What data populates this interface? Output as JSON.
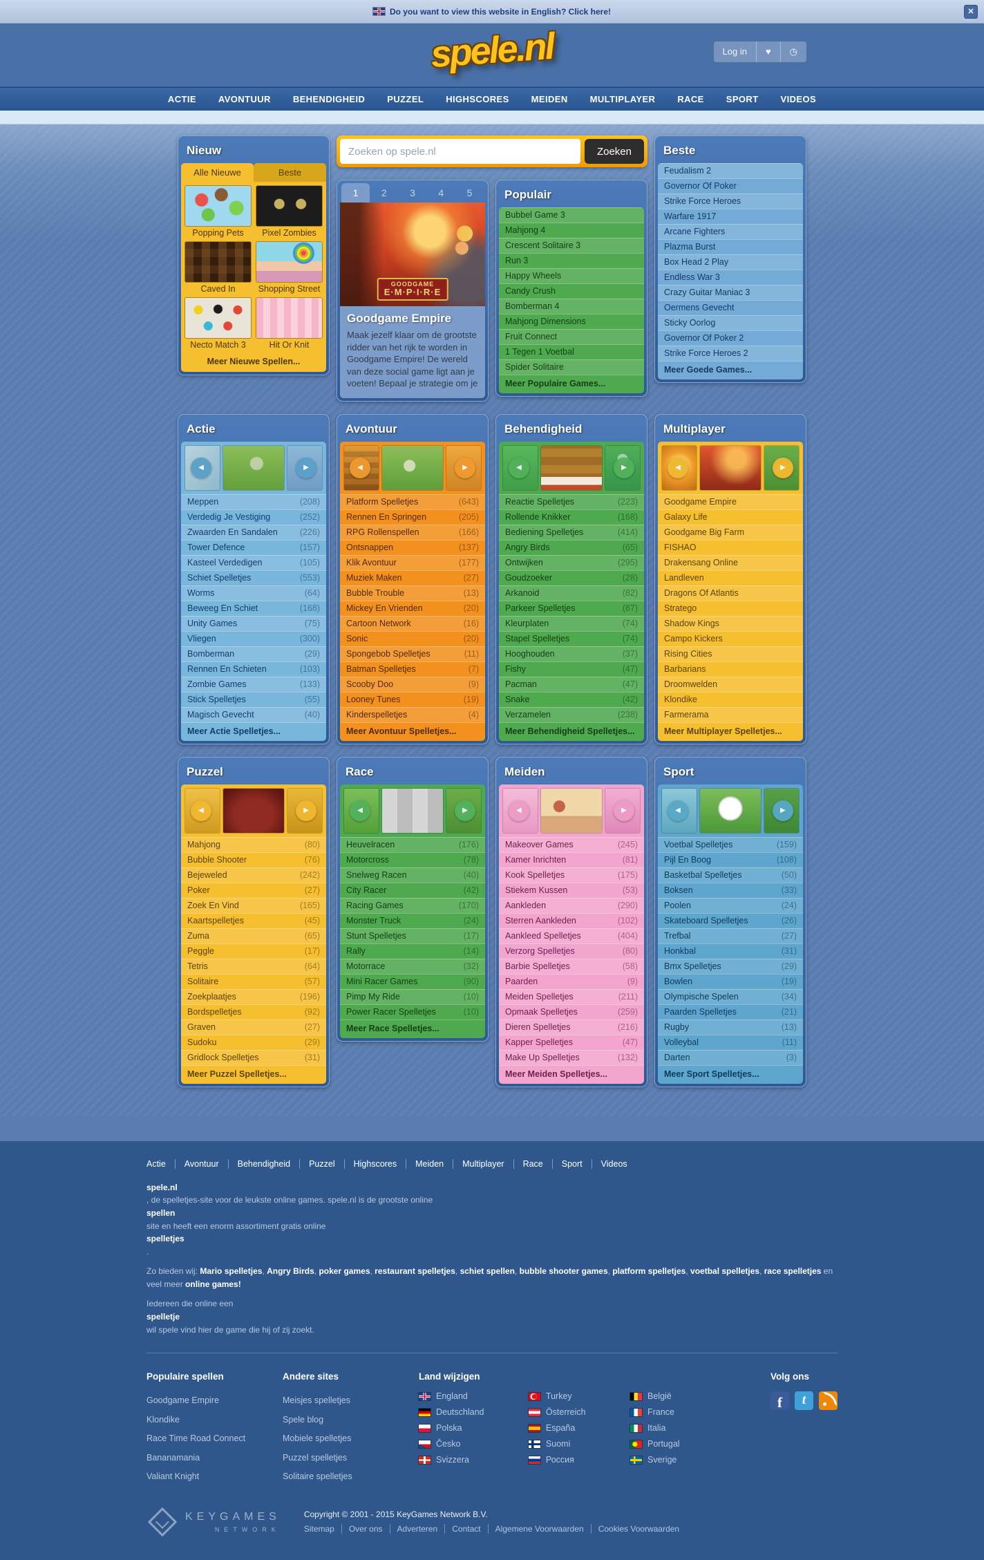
{
  "banner": {
    "text": "Do you want to view this website in English? Click here!",
    "flag": "uk"
  },
  "header": {
    "logo": "spele.nl",
    "login_label": "Log in"
  },
  "icons": {
    "close": "✕",
    "heart": "♥",
    "clock": "◷",
    "prev": "◀",
    "next": "▶",
    "facebook": "f",
    "twitter": "t",
    "rss": "rss"
  },
  "colors": {
    "brand_yellow": "#ffc31e",
    "panel_frame_blue": "#35639f",
    "green": "#4fa94f",
    "orange": "#f2911d",
    "yellow": "#f6bf2f",
    "pink": "#f2a6cd",
    "sport_blue": "#5ea6cd",
    "footer_blue": "#2f578c"
  },
  "nav": {
    "items": [
      "ACTIE",
      "AVONTUUR",
      "BEHENDIGHEID",
      "PUZZEL",
      "HIGHSCORES",
      "MEIDEN",
      "MULTIPLAYER",
      "RACE",
      "SPORT",
      "VIDEOS"
    ]
  },
  "search": {
    "placeholder": "Zoeken op spele.nl",
    "button": "Zoeken"
  },
  "nieuw": {
    "title": "Nieuw",
    "tabs": [
      {
        "label": "Alle Nieuwe",
        "active": true
      },
      {
        "label": "Beste",
        "active": false
      }
    ],
    "games": [
      {
        "name": "Popping Pets",
        "thumb": "popping-pets"
      },
      {
        "name": "Pixel Zombies",
        "thumb": "pixel-zombies"
      },
      {
        "name": "Caved In",
        "thumb": "caved-in"
      },
      {
        "name": "Shopping Street",
        "thumb": "shopping-street"
      },
      {
        "name": "Necto Match 3",
        "thumb": "necto-match-3"
      },
      {
        "name": "Hit Or Knit",
        "thumb": "hit-or-knit"
      }
    ],
    "more": "Meer Nieuwe Spellen..."
  },
  "featured": {
    "tabs": [
      {
        "label": "1",
        "active": true
      },
      {
        "label": "2",
        "active": false
      },
      {
        "label": "3",
        "active": false
      },
      {
        "label": "4",
        "active": false
      },
      {
        "label": "5",
        "active": false
      }
    ],
    "badge_line1": "GOODGAME",
    "badge_line2": "E·M·P·I·R·E",
    "title": "Goodgame Empire",
    "description": "Maak jezelf klaar om de grootste ridder van het rijk te worden in Goodgame Empire! De wereld van deze social game ligt aan je voeten! Bepaal je strategie om je"
  },
  "populair": {
    "title": "Populair",
    "items": [
      "Bubbel Game 3",
      "Mahjong 4",
      "Crescent Solitaire 3",
      "Run 3",
      "Happy Wheels",
      "Candy Crush",
      "Bomberman 4",
      "Mahjong Dimensions",
      "Fruit Connect",
      "1 Tegen 1 Voetbal",
      "Spider Solitaire"
    ],
    "more": "Meer Populaire Games..."
  },
  "beste": {
    "title": "Beste",
    "items": [
      "Feudalism 2",
      "Governor Of Poker",
      "Strike Force Heroes",
      "Warfare 1917",
      "Arcane Fighters",
      "Plazma Burst",
      "Box Head 2 Play",
      "Endless War 3",
      "Crazy Guitar Maniac 3",
      "Oermens Gevecht",
      "Sticky Oorlog",
      "Governor Of Poker 2",
      "Strike Force Heroes 2"
    ],
    "more": "Meer Goede Games..."
  },
  "categories": {
    "actie": {
      "title": "Actie",
      "more": "Meer Actie Spelletjes...",
      "items": [
        {
          "label": "Meppen",
          "count": "(208)"
        },
        {
          "label": "Verdedig Je Vestiging",
          "count": "(252)"
        },
        {
          "label": "Zwaarden En Sandalen",
          "count": "(226)"
        },
        {
          "label": "Tower Defence",
          "count": "(157)"
        },
        {
          "label": "Kasteel Verdedigen",
          "count": "(105)"
        },
        {
          "label": "Schiet Spelletjes",
          "count": "(553)"
        },
        {
          "label": "Worms",
          "count": "(64)"
        },
        {
          "label": "Beweeg En Schiet",
          "count": "(168)"
        },
        {
          "label": "Unity Games",
          "count": "(75)"
        },
        {
          "label": "Vliegen",
          "count": "(300)"
        },
        {
          "label": "Bomberman",
          "count": "(29)"
        },
        {
          "label": "Rennen En Schieten",
          "count": "(103)"
        },
        {
          "label": "Zombie Games",
          "count": "(133)"
        },
        {
          "label": "Stick Spelletjes",
          "count": "(55)"
        },
        {
          "label": "Magisch Gevecht",
          "count": "(40)"
        }
      ]
    },
    "avontuur": {
      "title": "Avontuur",
      "more": "Meer Avontuur Spelletjes...",
      "items": [
        {
          "label": "Platform Spelletjes",
          "count": "(643)"
        },
        {
          "label": "Rennen En Springen",
          "count": "(205)"
        },
        {
          "label": "RPG Rollenspellen",
          "count": "(166)"
        },
        {
          "label": "Ontsnappen",
          "count": "(137)"
        },
        {
          "label": "Klik Avontuur",
          "count": "(177)"
        },
        {
          "label": "Muziek Maken",
          "count": "(27)"
        },
        {
          "label": "Bubble Trouble",
          "count": "(13)"
        },
        {
          "label": "Mickey En Vrienden",
          "count": "(20)"
        },
        {
          "label": "Cartoon Network",
          "count": "(16)"
        },
        {
          "label": "Sonic",
          "count": "(20)"
        },
        {
          "label": "Spongebob Spelletjes",
          "count": "(11)"
        },
        {
          "label": "Batman Spelletjes",
          "count": "(7)"
        },
        {
          "label": "Scooby Doo",
          "count": "(9)"
        },
        {
          "label": "Looney Tunes",
          "count": "(19)"
        },
        {
          "label": "Kinderspelletjes",
          "count": "(4)"
        }
      ]
    },
    "behendigheid": {
      "title": "Behendigheid",
      "more": "Meer Behendigheid Spelletjes...",
      "items": [
        {
          "label": "Reactie Spelletjes",
          "count": "(223)"
        },
        {
          "label": "Rollende Knikker",
          "count": "(168)"
        },
        {
          "label": "Bediening Spelletjes",
          "count": "(414)"
        },
        {
          "label": "Angry Birds",
          "count": "(65)"
        },
        {
          "label": "Ontwijken",
          "count": "(295)"
        },
        {
          "label": "Goudzoeker",
          "count": "(28)"
        },
        {
          "label": "Arkanoid",
          "count": "(82)"
        },
        {
          "label": "Parkeer Spelletjes",
          "count": "(87)"
        },
        {
          "label": "Kleurplaten",
          "count": "(74)"
        },
        {
          "label": "Stapel Spelletjes",
          "count": "(74)"
        },
        {
          "label": "Hooghouden",
          "count": "(37)"
        },
        {
          "label": "Fishy",
          "count": "(47)"
        },
        {
          "label": "Pacman",
          "count": "(47)"
        },
        {
          "label": "Snake",
          "count": "(42)"
        },
        {
          "label": "Verzamelen",
          "count": "(238)"
        }
      ]
    },
    "multiplayer": {
      "title": "Multiplayer",
      "more": "Meer Multiplayer Spelletjes...",
      "items": [
        {
          "label": "Goodgame Empire",
          "count": ""
        },
        {
          "label": "Galaxy Life",
          "count": ""
        },
        {
          "label": "Goodgame Big Farm",
          "count": ""
        },
        {
          "label": "FISHAO",
          "count": ""
        },
        {
          "label": "Drakensang Online",
          "count": ""
        },
        {
          "label": "Landleven",
          "count": ""
        },
        {
          "label": "Dragons Of Atlantis",
          "count": ""
        },
        {
          "label": "Stratego",
          "count": ""
        },
        {
          "label": "Shadow Kings",
          "count": ""
        },
        {
          "label": "Campo Kickers",
          "count": ""
        },
        {
          "label": "Rising Cities",
          "count": ""
        },
        {
          "label": "Barbarians",
          "count": ""
        },
        {
          "label": "Droomwelden",
          "count": ""
        },
        {
          "label": "Klondike",
          "count": ""
        },
        {
          "label": "Farmerama",
          "count": ""
        }
      ]
    },
    "puzzel": {
      "title": "Puzzel",
      "more": "Meer Puzzel Spelletjes...",
      "items": [
        {
          "label": "Mahjong",
          "count": "(80)"
        },
        {
          "label": "Bubble Shooter",
          "count": "(76)"
        },
        {
          "label": "Bejeweled",
          "count": "(242)"
        },
        {
          "label": "Poker",
          "count": "(27)"
        },
        {
          "label": "Zoek En Vind",
          "count": "(165)"
        },
        {
          "label": "Kaartspelletjes",
          "count": "(45)"
        },
        {
          "label": "Zuma",
          "count": "(65)"
        },
        {
          "label": "Peggle",
          "count": "(17)"
        },
        {
          "label": "Tetris",
          "count": "(64)"
        },
        {
          "label": "Solitaire",
          "count": "(57)"
        },
        {
          "label": "Zoekplaatjes",
          "count": "(196)"
        },
        {
          "label": "Bordspelletjes",
          "count": "(92)"
        },
        {
          "label": "Graven",
          "count": "(27)"
        },
        {
          "label": "Sudoku",
          "count": "(29)"
        },
        {
          "label": "Gridlock Spelletjes",
          "count": "(31)"
        }
      ]
    },
    "race": {
      "title": "Race",
      "more": "Meer Race Spelletjes...",
      "items": [
        {
          "label": "Heuvelracen",
          "count": "(176)"
        },
        {
          "label": "Motorcross",
          "count": "(78)"
        },
        {
          "label": "Snelweg Racen",
          "count": "(40)"
        },
        {
          "label": "City Racer",
          "count": "(42)"
        },
        {
          "label": "Racing Games",
          "count": "(170)"
        },
        {
          "label": "Monster Truck",
          "count": "(24)"
        },
        {
          "label": "Stunt Spelletjes",
          "count": "(17)"
        },
        {
          "label": "Rally",
          "count": "(14)"
        },
        {
          "label": "Motorrace",
          "count": "(32)"
        },
        {
          "label": "Mini Racer Games",
          "count": "(90)"
        },
        {
          "label": "Pimp My Ride",
          "count": "(10)"
        },
        {
          "label": "Power Racer Spelletjes",
          "count": "(10)"
        }
      ]
    },
    "meiden": {
      "title": "Meiden",
      "more": "Meer Meiden Spelletjes...",
      "items": [
        {
          "label": "Makeover Games",
          "count": "(245)"
        },
        {
          "label": "Kamer Inrichten",
          "count": "(81)"
        },
        {
          "label": "Kook Spelletjes",
          "count": "(175)"
        },
        {
          "label": "Stiekem Kussen",
          "count": "(53)"
        },
        {
          "label": "Aankleden",
          "count": "(290)"
        },
        {
          "label": "Sterren Aankleden",
          "count": "(102)"
        },
        {
          "label": "Aankleed Spelletjes",
          "count": "(404)"
        },
        {
          "label": "Verzorg Spelletjes",
          "count": "(80)"
        },
        {
          "label": "Barbie Spelletjes",
          "count": "(58)"
        },
        {
          "label": "Paarden",
          "count": "(9)"
        },
        {
          "label": "Meiden Spelletjes",
          "count": "(211)"
        },
        {
          "label": "Opmaak Spelletjes",
          "count": "(259)"
        },
        {
          "label": "Dieren Spelletjes",
          "count": "(216)"
        },
        {
          "label": "Kapper Spelletjes",
          "count": "(47)"
        },
        {
          "label": "Make Up Spelletjes",
          "count": "(132)"
        }
      ]
    },
    "sport": {
      "title": "Sport",
      "more": "Meer Sport Spelletjes...",
      "items": [
        {
          "label": "Voetbal Spelletjes",
          "count": "(159)"
        },
        {
          "label": "Pijl En Boog",
          "count": "(108)"
        },
        {
          "label": "Basketbal Spelletjes",
          "count": "(50)"
        },
        {
          "label": "Boksen",
          "count": "(33)"
        },
        {
          "label": "Poolen",
          "count": "(24)"
        },
        {
          "label": "Skateboard Spelletjes",
          "count": "(26)"
        },
        {
          "label": "Trefbal",
          "count": "(27)"
        },
        {
          "label": "Honkbal",
          "count": "(31)"
        },
        {
          "label": "Bmx Spelletjes",
          "count": "(29)"
        },
        {
          "label": "Bowlen",
          "count": "(19)"
        },
        {
          "label": "Olympische Spelen",
          "count": "(34)"
        },
        {
          "label": "Paarden Spelletjes",
          "count": "(21)"
        },
        {
          "label": "Rugby",
          "count": "(13)"
        },
        {
          "label": "Volleybal",
          "count": "(11)"
        },
        {
          "label": "Darten",
          "count": "(3)"
        }
      ]
    }
  },
  "footer": {
    "nav": [
      "Actie",
      "Avontuur",
      "Behendigheid",
      "Puzzel",
      "Highscores",
      "Meiden",
      "Multiplayer",
      "Race",
      "Sport",
      "Videos"
    ],
    "about1": [
      {
        "text": "spele.nl",
        "bold": true
      },
      {
        "text": ", de spelletjes-site voor de leukste online games. spele.nl is de grootste online",
        "bold": false
      },
      {
        "text": "spellen",
        "bold": true
      },
      {
        "text": "site en heeft een enorm assortiment gratis online",
        "bold": false
      },
      {
        "text": "spelletjes",
        "bold": true
      },
      {
        "text": ".",
        "bold": false
      }
    ],
    "offer": [
      {
        "text": "Zo bieden wij: ",
        "bold": false
      },
      {
        "text": "Mario spelletjes",
        "bold": true
      },
      {
        "text": ", ",
        "bold": false
      },
      {
        "text": "Angry Birds",
        "bold": true
      },
      {
        "text": ", ",
        "bold": false
      },
      {
        "text": "poker games",
        "bold": true
      },
      {
        "text": ", ",
        "bold": false
      },
      {
        "text": "restaurant spelletjes",
        "bold": true
      },
      {
        "text": ", ",
        "bold": false
      },
      {
        "text": "schiet spellen",
        "bold": true
      },
      {
        "text": ", ",
        "bold": false
      },
      {
        "text": "bubble shooter games",
        "bold": true
      },
      {
        "text": ", ",
        "bold": false
      },
      {
        "text": "platform spelletjes",
        "bold": true
      },
      {
        "text": ", ",
        "bold": false
      },
      {
        "text": "voetbal spelletjes",
        "bold": true
      },
      {
        "text": ", ",
        "bold": false
      },
      {
        "text": "race spelletjes",
        "bold": true
      },
      {
        "text": " en veel meer ",
        "bold": false
      },
      {
        "text": "online games!",
        "bold": true
      }
    ],
    "about2": [
      {
        "text": "Iedereen die online een",
        "bold": false
      },
      {
        "text": "spelletje",
        "bold": true
      },
      {
        "text": "wil spele vind hier de game die hij of zij zoekt.",
        "bold": false
      }
    ],
    "col1": {
      "heading": "Populaire spellen",
      "links": [
        "Goodgame Empire",
        "Klondike",
        "Race Time Road Connect",
        "Bananamania",
        "Valiant Knight"
      ]
    },
    "col2": {
      "heading": "Andere sites",
      "links": [
        "Meisjes spelletjes",
        "Spele blog",
        "Mobiele spelletjes",
        "Puzzel spelletjes",
        "Solitaire spelletjes"
      ]
    },
    "col3": {
      "heading": "Land wijzigen",
      "countries": [
        {
          "name": "England",
          "flag": "uk"
        },
        {
          "name": "Deutschland",
          "flag": "de"
        },
        {
          "name": "Polska",
          "flag": "pl"
        },
        {
          "name": "Česko",
          "flag": "cz"
        },
        {
          "name": "Svizzera",
          "flag": "ch"
        },
        {
          "name": "Turkey",
          "flag": "tr"
        },
        {
          "name": "Österreich",
          "flag": "at"
        },
        {
          "name": "España",
          "flag": "es"
        },
        {
          "name": "Suomi",
          "flag": "fi"
        },
        {
          "name": "Россия",
          "flag": "ru"
        },
        {
          "name": "België",
          "flag": "be"
        },
        {
          "name": "France",
          "flag": "fr"
        },
        {
          "name": "Italia",
          "flag": "it"
        },
        {
          "name": "Portugal",
          "flag": "pt"
        },
        {
          "name": "Sverige",
          "flag": "se"
        }
      ]
    },
    "col4": {
      "heading": "Volg ons"
    },
    "keygames": {
      "brand": "KEYGAMES",
      "sub": "NETWORK",
      "copyright": "Copyright © 2001 - 2015 KeyGames Network B.V.",
      "links": [
        "Sitemap",
        "Over ons",
        "Adverteren",
        "Contact",
        "Algemene Voorwaarden",
        "Cookies Voorwaarden"
      ]
    }
  }
}
